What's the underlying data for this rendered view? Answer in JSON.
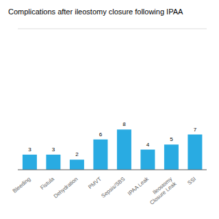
{
  "chart_data": {
    "type": "bar",
    "title": "Complications after ileostomy closure following IPAA",
    "categories": [
      "Bleeding",
      "Fistula",
      "Dehydration",
      "PMVT",
      "Sepsis/SBS",
      "IPAA Leak",
      "Ileostomy\nClosure Leak",
      "SSI"
    ],
    "values": [
      3,
      3,
      2,
      6,
      8,
      4,
      5,
      7
    ],
    "color": "#29ABE2",
    "ylim": [
      0,
      28
    ],
    "yticks": [
      0,
      4,
      8,
      12,
      16,
      20,
      24,
      28
    ],
    "grid": true,
    "data_labels": true,
    "tick_labels": "x"
  }
}
